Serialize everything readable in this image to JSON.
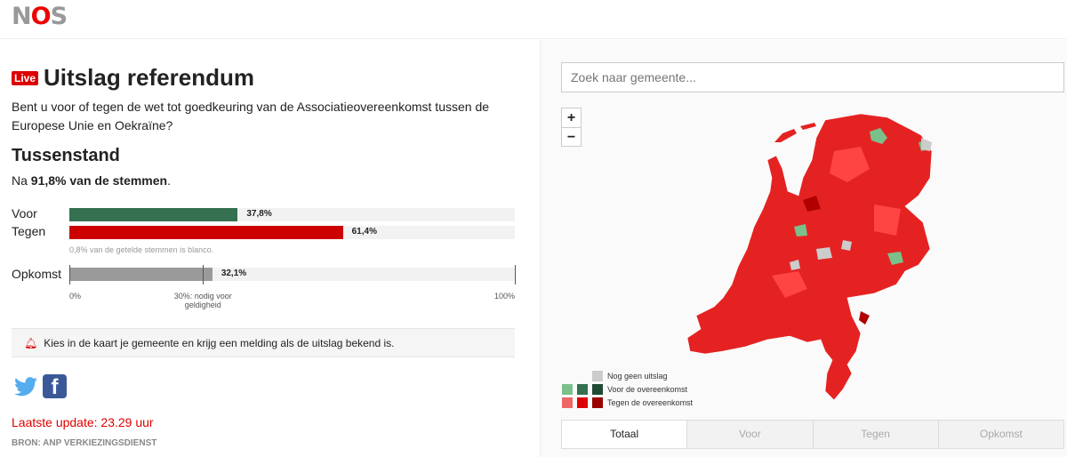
{
  "header": {
    "logo": "NOS"
  },
  "article": {
    "live_badge": "Live",
    "title": "Uitslag referendum",
    "question": "Bent u voor of tegen de wet tot goedkeuring van de Associatieovereenkomst tussen de Europese Unie en Oekraïne?",
    "subtitle": "Tussenstand",
    "counted_prefix": "Na ",
    "counted_value": "91,8% van de stemmen",
    "counted_suffix": ".",
    "results": [
      {
        "label": "Voor",
        "value": 37.8,
        "value_label": "37,8%",
        "color": "#357150"
      },
      {
        "label": "Tegen",
        "value": 61.4,
        "value_label": "61,4%",
        "color": "#cc0000"
      }
    ],
    "blank_note": "0,8% van de getelde stemmen is blanco.",
    "turnout": {
      "label": "Opkomst",
      "value": 32.1,
      "value_label": "32,1%",
      "color": "#9a9a9a",
      "threshold": 30,
      "threshold_label": "30%: nodig voor geldigheid",
      "min_label": "0%",
      "max_label": "100%"
    },
    "notice": "Kies in de kaart je gemeente en krijg een melding als de uitslag bekend is.",
    "notice_icon": "bell-icon",
    "social": [
      "twitter-icon",
      "facebook-icon"
    ],
    "update": "Laatste update: 23.29 uur",
    "source": "BRON: ANP VERKIEZINGSDIENST"
  },
  "map": {
    "search_placeholder": "Zoek naar gemeente...",
    "zoom_in": "+",
    "zoom_out": "−",
    "legend": [
      {
        "label": "Nog geen uitslag",
        "colors": [
          "#cccccc"
        ]
      },
      {
        "label": "Voor de overeenkomst",
        "colors": [
          "#7bc08b",
          "#357150",
          "#1f4a33"
        ]
      },
      {
        "label": "Tegen de overeenkomst",
        "colors": [
          "#ee6666",
          "#dd0000",
          "#990000"
        ]
      }
    ],
    "tabs": [
      "Totaal",
      "Voor",
      "Tegen",
      "Opkomst"
    ],
    "active_tab": "Totaal"
  }
}
